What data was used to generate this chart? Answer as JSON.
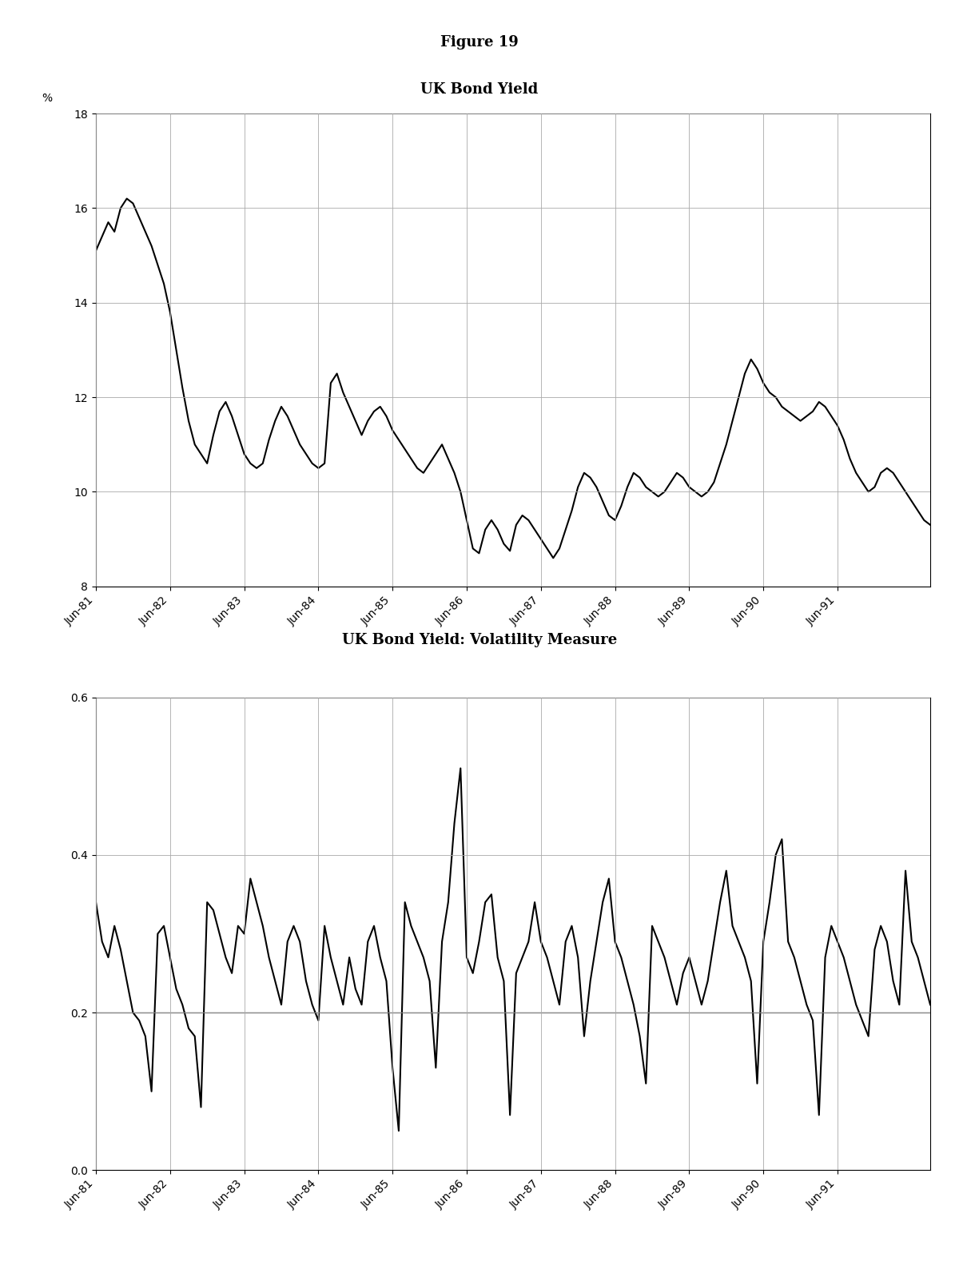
{
  "figure_title": "Figure 19",
  "chart1_title": "UK Bond Yield",
  "chart2_title": "UK Bond Yield: Volatility Measure",
  "chart1_ylabel": "%",
  "chart1_ylim": [
    8,
    18
  ],
  "chart1_yticks": [
    8,
    10,
    12,
    14,
    16,
    18
  ],
  "chart2_ylim": [
    0,
    0.6
  ],
  "chart2_yticks": [
    0,
    0.2,
    0.4,
    0.6
  ],
  "chart2_hline": 0.2,
  "x_labels": [
    "Jun-81",
    "Jun-82",
    "Jun-83",
    "Jun-84",
    "Jun-85",
    "Jun-86",
    "Jun-87",
    "Jun-88",
    "Jun-89",
    "Jun-90",
    "Jun-91"
  ],
  "bond_yield": [
    15.1,
    15.4,
    15.7,
    15.5,
    16.0,
    16.2,
    16.1,
    15.8,
    15.5,
    15.2,
    14.8,
    14.4,
    13.8,
    13.0,
    12.2,
    11.5,
    11.0,
    10.8,
    10.6,
    11.2,
    11.7,
    11.9,
    11.6,
    11.2,
    10.8,
    10.6,
    10.5,
    10.6,
    11.1,
    11.5,
    11.8,
    11.6,
    11.3,
    11.0,
    10.8,
    10.6,
    10.5,
    10.6,
    12.3,
    12.5,
    12.1,
    11.8,
    11.5,
    11.2,
    11.5,
    11.7,
    11.8,
    11.6,
    11.3,
    11.1,
    10.9,
    10.7,
    10.5,
    10.4,
    10.6,
    10.8,
    11.0,
    10.7,
    10.4,
    10.0,
    9.4,
    8.8,
    8.7,
    9.2,
    9.4,
    9.2,
    8.9,
    8.75,
    9.3,
    9.5,
    9.4,
    9.2,
    9.0,
    8.8,
    8.6,
    8.8,
    9.2,
    9.6,
    10.1,
    10.4,
    10.3,
    10.1,
    9.8,
    9.5,
    9.4,
    9.7,
    10.1,
    10.4,
    10.3,
    10.1,
    10.0,
    9.9,
    10.0,
    10.2,
    10.4,
    10.3,
    10.1,
    10.0,
    9.9,
    10.0,
    10.2,
    10.6,
    11.0,
    11.5,
    12.0,
    12.5,
    12.8,
    12.6,
    12.3,
    12.1,
    12.0,
    11.8,
    11.7,
    11.6,
    11.5,
    11.6,
    11.7,
    11.9,
    11.8,
    11.6,
    11.4,
    11.1,
    10.7,
    10.4,
    10.2,
    10.0,
    10.1,
    10.4,
    10.5,
    10.4,
    10.2,
    10.0,
    9.8,
    9.6,
    9.4,
    9.3
  ],
  "volatility": [
    0.34,
    0.29,
    0.27,
    0.31,
    0.28,
    0.24,
    0.2,
    0.19,
    0.17,
    0.1,
    0.3,
    0.31,
    0.27,
    0.23,
    0.21,
    0.18,
    0.17,
    0.08,
    0.34,
    0.33,
    0.3,
    0.27,
    0.25,
    0.31,
    0.3,
    0.37,
    0.34,
    0.31,
    0.27,
    0.24,
    0.21,
    0.29,
    0.31,
    0.29,
    0.24,
    0.21,
    0.19,
    0.31,
    0.27,
    0.24,
    0.21,
    0.27,
    0.23,
    0.21,
    0.29,
    0.31,
    0.27,
    0.24,
    0.13,
    0.05,
    0.34,
    0.31,
    0.29,
    0.27,
    0.24,
    0.13,
    0.29,
    0.34,
    0.44,
    0.51,
    0.27,
    0.25,
    0.29,
    0.34,
    0.35,
    0.27,
    0.24,
    0.07,
    0.25,
    0.27,
    0.29,
    0.34,
    0.29,
    0.27,
    0.24,
    0.21,
    0.29,
    0.31,
    0.27,
    0.17,
    0.24,
    0.29,
    0.34,
    0.37,
    0.29,
    0.27,
    0.24,
    0.21,
    0.17,
    0.11,
    0.31,
    0.29,
    0.27,
    0.24,
    0.21,
    0.25,
    0.27,
    0.24,
    0.21,
    0.24,
    0.29,
    0.34,
    0.38,
    0.31,
    0.29,
    0.27,
    0.24,
    0.11,
    0.29,
    0.34,
    0.4,
    0.42,
    0.29,
    0.27,
    0.24,
    0.21,
    0.19,
    0.07,
    0.27,
    0.31,
    0.29,
    0.27,
    0.24,
    0.21,
    0.19,
    0.17,
    0.28,
    0.31,
    0.29,
    0.24,
    0.21,
    0.38,
    0.29,
    0.27,
    0.24,
    0.21
  ],
  "line_color": "#000000",
  "line_width": 1.5,
  "grid_color": "#888888",
  "background_color": "#ffffff",
  "title_fontsize": 13,
  "figure_title_fontsize": 13,
  "axis_fontsize": 10
}
